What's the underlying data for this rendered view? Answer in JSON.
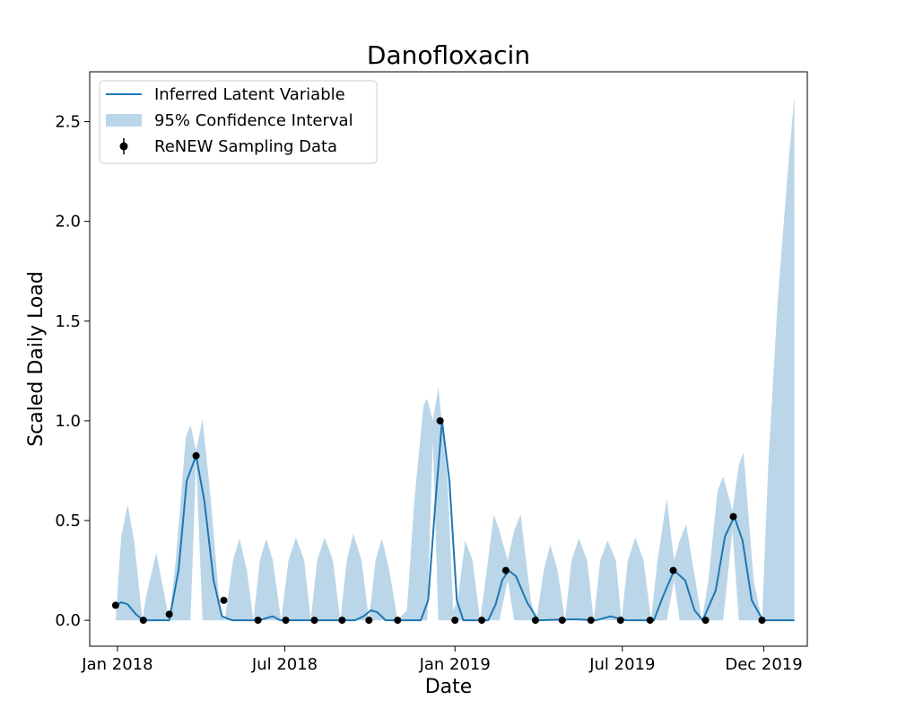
{
  "chart_data": {
    "type": "line",
    "title": "Danofloxacin",
    "xlabel": "Date",
    "ylabel": "Scaled Daily Load",
    "xlim": [
      "2017-12-02",
      "2020-01-17"
    ],
    "ylim": [
      -0.13,
      2.75
    ],
    "x_ticks": [
      {
        "date": "2018-01-01",
        "label": "Jan 2018"
      },
      {
        "date": "2018-07-01",
        "label": "Jul 2018"
      },
      {
        "date": "2019-01-01",
        "label": "Jan 2019"
      },
      {
        "date": "2019-07-01",
        "label": "Jul 2019"
      },
      {
        "date": "2019-12-01",
        "label": "Dec 2019"
      }
    ],
    "y_ticks": [
      {
        "value": 0.0,
        "label": "0.0"
      },
      {
        "value": 0.5,
        "label": "0.5"
      },
      {
        "value": 1.0,
        "label": "1.0"
      },
      {
        "value": 1.5,
        "label": "1.5"
      },
      {
        "value": 2.0,
        "label": "2.0"
      },
      {
        "value": 2.5,
        "label": "2.5"
      }
    ],
    "legend_position": "top-left",
    "grid": false,
    "series": [
      {
        "name": "Inferred Latent Variable",
        "kind": "line",
        "color": "#1f77b4",
        "points": [
          [
            "2017-12-30",
            0.075
          ],
          [
            "2018-01-05",
            0.09
          ],
          [
            "2018-01-12",
            0.08
          ],
          [
            "2018-01-21",
            0.03
          ],
          [
            "2018-01-29",
            0.0
          ],
          [
            "2018-02-26",
            0.0
          ],
          [
            "2018-03-08",
            0.25
          ],
          [
            "2018-03-17",
            0.7
          ],
          [
            "2018-03-27",
            0.825
          ],
          [
            "2018-04-05",
            0.6
          ],
          [
            "2018-04-15",
            0.2
          ],
          [
            "2018-04-24",
            0.02
          ],
          [
            "2018-05-05",
            0.0
          ],
          [
            "2018-06-03",
            0.0
          ],
          [
            "2018-06-18",
            0.02
          ],
          [
            "2018-06-26",
            0.0
          ],
          [
            "2018-09-15",
            0.0
          ],
          [
            "2018-09-24",
            0.02
          ],
          [
            "2018-10-02",
            0.05
          ],
          [
            "2018-10-09",
            0.04
          ],
          [
            "2018-10-18",
            0.0
          ],
          [
            "2018-11-25",
            0.0
          ],
          [
            "2018-12-03",
            0.1
          ],
          [
            "2018-12-11",
            0.6
          ],
          [
            "2018-12-18",
            1.0
          ],
          [
            "2018-12-26",
            0.7
          ],
          [
            "2019-01-03",
            0.1
          ],
          [
            "2019-01-10",
            0.0
          ],
          [
            "2019-02-06",
            0.0
          ],
          [
            "2019-02-14",
            0.08
          ],
          [
            "2019-02-21",
            0.2
          ],
          [
            "2019-02-28",
            0.25
          ],
          [
            "2019-03-08",
            0.22
          ],
          [
            "2019-03-20",
            0.09
          ],
          [
            "2019-04-01",
            0.0
          ],
          [
            "2019-05-10",
            0.005
          ],
          [
            "2019-06-03",
            0.0
          ],
          [
            "2019-06-18",
            0.02
          ],
          [
            "2019-07-05",
            0.0
          ],
          [
            "2019-08-04",
            0.0
          ],
          [
            "2019-08-14",
            0.12
          ],
          [
            "2019-08-26",
            0.25
          ],
          [
            "2019-09-07",
            0.2
          ],
          [
            "2019-09-17",
            0.05
          ],
          [
            "2019-09-26",
            0.0
          ],
          [
            "2019-10-10",
            0.15
          ],
          [
            "2019-10-20",
            0.42
          ],
          [
            "2019-10-30",
            0.52
          ],
          [
            "2019-11-08",
            0.4
          ],
          [
            "2019-11-18",
            0.1
          ],
          [
            "2019-11-30",
            0.0
          ],
          [
            "2020-01-03",
            0.0
          ]
        ]
      },
      {
        "name": "95% Confidence Interval",
        "kind": "band",
        "color": "#1f77b4",
        "opacity": 0.3,
        "points": [
          [
            "2017-12-30",
            0.0,
            0.0
          ],
          [
            "2018-01-05",
            0.0,
            0.42
          ],
          [
            "2018-01-12",
            0.0,
            0.58
          ],
          [
            "2018-01-19",
            0.0,
            0.4
          ],
          [
            "2018-01-28",
            0.0,
            0.0
          ],
          [
            "2018-02-01",
            0.0,
            0.12
          ],
          [
            "2018-02-12",
            0.0,
            0.34
          ],
          [
            "2018-02-22",
            0.0,
            0.1
          ],
          [
            "2018-02-26",
            0.0,
            0.0
          ],
          [
            "2018-03-05",
            0.0,
            0.3
          ],
          [
            "2018-03-16",
            0.0,
            0.92
          ],
          [
            "2018-03-21",
            0.0,
            0.98
          ],
          [
            "2018-03-27",
            0.8,
            0.85
          ],
          [
            "2018-04-03",
            0.0,
            1.01
          ],
          [
            "2018-04-12",
            0.0,
            0.6
          ],
          [
            "2018-04-22",
            0.0,
            0.05
          ],
          [
            "2018-04-27",
            0.0,
            0.0
          ],
          [
            "2018-05-06",
            0.0,
            0.3
          ],
          [
            "2018-05-13",
            0.0,
            0.41
          ],
          [
            "2018-05-21",
            0.0,
            0.25
          ],
          [
            "2018-05-28",
            0.0,
            0.0
          ],
          [
            "2018-06-04",
            0.0,
            0.3
          ],
          [
            "2018-06-11",
            0.0,
            0.41
          ],
          [
            "2018-06-18",
            0.0,
            0.3
          ],
          [
            "2018-06-27",
            0.0,
            0.0
          ],
          [
            "2018-07-05",
            0.0,
            0.3
          ],
          [
            "2018-07-13",
            0.0,
            0.415
          ],
          [
            "2018-07-22",
            0.0,
            0.3
          ],
          [
            "2018-07-29",
            0.0,
            0.0
          ],
          [
            "2018-08-05",
            0.0,
            0.3
          ],
          [
            "2018-08-13",
            0.0,
            0.415
          ],
          [
            "2018-08-22",
            0.0,
            0.3
          ],
          [
            "2018-08-30",
            0.0,
            0.0
          ],
          [
            "2018-09-06",
            0.0,
            0.3
          ],
          [
            "2018-09-13",
            0.0,
            0.435
          ],
          [
            "2018-09-22",
            0.0,
            0.3
          ],
          [
            "2018-09-30",
            0.0,
            0.0
          ],
          [
            "2018-10-07",
            0.0,
            0.3
          ],
          [
            "2018-10-14",
            0.0,
            0.41
          ],
          [
            "2018-10-22",
            0.0,
            0.25
          ],
          [
            "2018-10-31",
            0.0,
            0.0
          ],
          [
            "2018-11-10",
            0.0,
            0.05
          ],
          [
            "2018-11-18",
            0.0,
            0.6
          ],
          [
            "2018-11-28",
            0.0,
            1.08
          ],
          [
            "2018-12-02",
            0.0,
            1.11
          ],
          [
            "2018-12-08",
            0.9,
            1.0
          ],
          [
            "2018-12-14",
            0.0,
            1.17
          ],
          [
            "2018-12-24",
            0.0,
            0.7
          ],
          [
            "2018-12-30",
            0.0,
            0.05
          ],
          [
            "2019-01-04",
            0.0,
            0.1
          ],
          [
            "2019-01-12",
            0.0,
            0.4
          ],
          [
            "2019-01-20",
            0.0,
            0.3
          ],
          [
            "2019-01-28",
            0.0,
            0.0
          ],
          [
            "2019-02-03",
            0.0,
            0.2
          ],
          [
            "2019-02-12",
            0.0,
            0.53
          ],
          [
            "2019-02-18",
            0.0,
            0.45
          ],
          [
            "2019-02-27",
            0.2,
            0.3
          ],
          [
            "2019-03-06",
            0.0,
            0.45
          ],
          [
            "2019-03-13",
            0.0,
            0.53
          ],
          [
            "2019-03-24",
            0.0,
            0.1
          ],
          [
            "2019-03-30",
            0.0,
            0.0
          ],
          [
            "2019-04-07",
            0.0,
            0.25
          ],
          [
            "2019-04-14",
            0.0,
            0.38
          ],
          [
            "2019-04-22",
            0.0,
            0.25
          ],
          [
            "2019-04-30",
            0.0,
            0.0
          ],
          [
            "2019-05-07",
            0.0,
            0.3
          ],
          [
            "2019-05-15",
            0.0,
            0.41
          ],
          [
            "2019-05-24",
            0.0,
            0.3
          ],
          [
            "2019-05-31",
            0.0,
            0.0
          ],
          [
            "2019-06-07",
            0.0,
            0.3
          ],
          [
            "2019-06-15",
            0.0,
            0.4
          ],
          [
            "2019-06-24",
            0.0,
            0.3
          ],
          [
            "2019-06-30",
            0.0,
            0.0
          ],
          [
            "2019-07-07",
            0.0,
            0.3
          ],
          [
            "2019-07-15",
            0.0,
            0.415
          ],
          [
            "2019-07-24",
            0.0,
            0.3
          ],
          [
            "2019-08-01",
            0.0,
            0.0
          ],
          [
            "2019-08-08",
            0.0,
            0.3
          ],
          [
            "2019-08-18",
            0.0,
            0.61
          ],
          [
            "2019-08-26",
            0.2,
            0.3
          ],
          [
            "2019-09-01",
            0.0,
            0.4
          ],
          [
            "2019-09-08",
            0.0,
            0.48
          ],
          [
            "2019-09-18",
            0.0,
            0.2
          ],
          [
            "2019-09-25",
            0.0,
            0.0
          ],
          [
            "2019-10-02",
            0.0,
            0.2
          ],
          [
            "2019-10-12",
            0.0,
            0.65
          ],
          [
            "2019-10-18",
            0.0,
            0.72
          ],
          [
            "2019-10-28",
            0.45,
            0.55
          ],
          [
            "2019-11-04",
            0.0,
            0.78
          ],
          [
            "2019-11-09",
            0.0,
            0.84
          ],
          [
            "2019-11-20",
            0.0,
            0.2
          ],
          [
            "2019-11-29",
            0.0,
            0.0
          ],
          [
            "2019-12-06",
            0.0,
            0.8
          ],
          [
            "2019-12-16",
            0.0,
            1.6
          ],
          [
            "2019-12-26",
            0.0,
            2.2
          ],
          [
            "2020-01-03",
            0.0,
            2.63
          ]
        ]
      },
      {
        "name": "ReNEW Sampling Data",
        "kind": "points",
        "color": "#000000",
        "points": [
          [
            "2017-12-30",
            0.075
          ],
          [
            "2018-01-29",
            0.0
          ],
          [
            "2018-02-26",
            0.03
          ],
          [
            "2018-03-27",
            0.825
          ],
          [
            "2018-04-26",
            0.1
          ],
          [
            "2018-06-02",
            0.0
          ],
          [
            "2018-07-02",
            0.0
          ],
          [
            "2018-08-02",
            0.0
          ],
          [
            "2018-09-01",
            0.0
          ],
          [
            "2018-09-30",
            0.0
          ],
          [
            "2018-10-31",
            0.0
          ],
          [
            "2018-12-16",
            1.0
          ],
          [
            "2019-01-01",
            0.0
          ],
          [
            "2019-01-30",
            0.0
          ],
          [
            "2019-02-25",
            0.25
          ],
          [
            "2019-03-29",
            0.0
          ],
          [
            "2019-04-27",
            0.0
          ],
          [
            "2019-05-28",
            0.0
          ],
          [
            "2019-06-29",
            0.0
          ],
          [
            "2019-07-31",
            0.0
          ],
          [
            "2019-08-25",
            0.25
          ],
          [
            "2019-09-29",
            0.0
          ],
          [
            "2019-10-29",
            0.52
          ],
          [
            "2019-11-29",
            0.0
          ]
        ]
      }
    ]
  }
}
